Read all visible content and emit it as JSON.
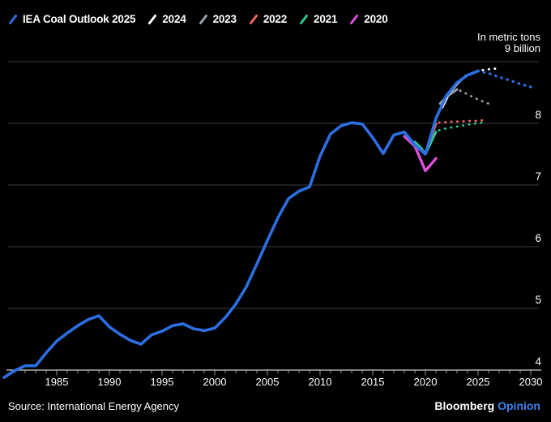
{
  "legend": {
    "items": [
      {
        "label": "IEA Coal Outlook 2025",
        "color": "#2b6fe3"
      },
      {
        "label": "2024",
        "color": "#ffffff"
      },
      {
        "label": "2023",
        "color": "#9aa2ac"
      },
      {
        "label": "2022",
        "color": "#f1685c"
      },
      {
        "label": "2021",
        "color": "#2ec796"
      },
      {
        "label": "2020",
        "color": "#dd50da"
      }
    ]
  },
  "units": {
    "line1": "In metric tons",
    "line2": "9 billion"
  },
  "footer": {
    "source": "Source: International Energy Agency",
    "brand": "Bloomberg",
    "brand_suffix": "Opinion"
  },
  "colors": {
    "background": "#000000",
    "accent_blue": "#2b6fe3",
    "opinion_blue": "#3d82f0",
    "grid": "#3e3e40",
    "axis": "#cfcfcf"
  },
  "chart_data": {
    "type": "line",
    "title": "",
    "xlabel": "",
    "ylabel": "In metric tons (billion)",
    "x_range": [
      1980,
      2030
    ],
    "y_range": [
      4,
      9
    ],
    "grid": "horizontal",
    "legend_position": "top-left",
    "x_tick_labels": [
      "1985",
      "1990",
      "1995",
      "2000",
      "2005",
      "2010",
      "2015",
      "2020",
      "2025",
      "2030"
    ],
    "y_gridlines": [
      9,
      8,
      7,
      6,
      5
    ],
    "y_tick_labels": [
      "8",
      "7",
      "6",
      "5",
      "4"
    ],
    "style": {
      "grid_color": "#3e3e40",
      "axis_color": "#cfcfcf",
      "tick_color": "#8f8f8f",
      "label_color": "#ffffff",
      "dash": "0.5 7"
    },
    "series": [
      {
        "name": "IEA Coal Outlook 2024",
        "legend_label": "2024",
        "color": "#ffffff",
        "width": 3,
        "solid": [
          [
            2021.6,
            8.26
          ],
          [
            2022.3,
            8.5
          ],
          [
            2023,
            8.64
          ],
          [
            2023.5,
            8.72
          ]
        ],
        "dotted": [
          [
            2023.8,
            8.77
          ],
          [
            2024.4,
            8.81
          ],
          [
            2025,
            8.85
          ],
          [
            2025.6,
            8.87
          ],
          [
            2026.2,
            8.88
          ],
          [
            2026.8,
            8.89
          ]
        ]
      },
      {
        "name": "IEA Coal Outlook 2023",
        "legend_label": "2023",
        "color": "#9aa2ac",
        "width": 3,
        "solid": [
          [
            2021.4,
            8.32
          ],
          [
            2022,
            8.43
          ],
          [
            2023,
            8.55
          ]
        ],
        "dotted": [
          [
            2023.3,
            8.53
          ],
          [
            2024,
            8.47
          ],
          [
            2024.7,
            8.41
          ],
          [
            2025.4,
            8.36
          ],
          [
            2026,
            8.32
          ]
        ]
      },
      {
        "name": "IEA Coal Outlook 2021",
        "legend_label": "2021",
        "color": "#2ec796",
        "width": 3,
        "solid": [
          [
            2019,
            7.7
          ],
          [
            2019.6,
            7.6
          ],
          [
            2020,
            7.5
          ],
          [
            2021,
            7.86
          ]
        ],
        "dotted": [
          [
            2021.3,
            7.89
          ],
          [
            2022,
            7.92
          ],
          [
            2022.7,
            7.94
          ],
          [
            2023.4,
            7.96
          ],
          [
            2024.1,
            7.98
          ],
          [
            2024.8,
            8.0
          ],
          [
            2025.4,
            8.01
          ]
        ]
      },
      {
        "name": "IEA Coal Outlook 2022",
        "legend_label": "2022",
        "color": "#f1685c",
        "width": 3,
        "solid": [
          [
            2020,
            7.5
          ],
          [
            2020.5,
            7.76
          ],
          [
            2021,
            7.99
          ]
        ],
        "dotted": [
          [
            2021.3,
            8.01
          ],
          [
            2022,
            8.02
          ],
          [
            2022.7,
            8.03
          ],
          [
            2023.4,
            8.03
          ],
          [
            2024.1,
            8.04
          ],
          [
            2024.8,
            8.04
          ],
          [
            2025.4,
            8.05
          ]
        ]
      },
      {
        "name": "IEA Coal Outlook 2020",
        "legend_label": "2020",
        "color": "#dd50da",
        "width": 3.4,
        "solid": [
          [
            2018,
            7.79
          ],
          [
            2019,
            7.63
          ],
          [
            2020,
            7.23
          ],
          [
            2021,
            7.43
          ]
        ],
        "dotted": []
      },
      {
        "name": "IEA Coal Outlook 2025",
        "legend_label": "IEA Coal Outlook 2025",
        "color": "#2b6fe3",
        "width": 3.6,
        "solid": [
          [
            1980,
            3.88
          ],
          [
            1981,
            3.99
          ],
          [
            1982,
            4.07
          ],
          [
            1983,
            4.07
          ],
          [
            1984,
            4.28
          ],
          [
            1985,
            4.47
          ],
          [
            1986,
            4.6
          ],
          [
            1987,
            4.72
          ],
          [
            1988,
            4.82
          ],
          [
            1989,
            4.88
          ],
          [
            1990,
            4.7
          ],
          [
            1991,
            4.58
          ],
          [
            1992,
            4.48
          ],
          [
            1993,
            4.42
          ],
          [
            1994,
            4.57
          ],
          [
            1995,
            4.63
          ],
          [
            1996,
            4.72
          ],
          [
            1997,
            4.75
          ],
          [
            1998,
            4.67
          ],
          [
            1999,
            4.64
          ],
          [
            2000,
            4.68
          ],
          [
            2001,
            4.85
          ],
          [
            2002,
            5.07
          ],
          [
            2003,
            5.35
          ],
          [
            2004,
            5.72
          ],
          [
            2005,
            6.1
          ],
          [
            2006,
            6.47
          ],
          [
            2007,
            6.78
          ],
          [
            2008,
            6.9
          ],
          [
            2009,
            6.97
          ],
          [
            2010,
            7.47
          ],
          [
            2011,
            7.83
          ],
          [
            2012,
            7.96
          ],
          [
            2013,
            8.01
          ],
          [
            2014,
            7.99
          ],
          [
            2015,
            7.77
          ],
          [
            2016,
            7.51
          ],
          [
            2017,
            7.81
          ],
          [
            2018,
            7.86
          ],
          [
            2019,
            7.65
          ],
          [
            2020,
            7.5
          ],
          [
            2021,
            8.08
          ],
          [
            2022,
            8.45
          ],
          [
            2023,
            8.66
          ],
          [
            2024,
            8.78
          ],
          [
            2025,
            8.85
          ]
        ],
        "dotted": [
          [
            2025,
            8.85
          ],
          [
            2026,
            8.81
          ],
          [
            2027,
            8.75
          ],
          [
            2028,
            8.7
          ],
          [
            2029,
            8.64
          ],
          [
            2030,
            8.59
          ]
        ]
      }
    ]
  }
}
